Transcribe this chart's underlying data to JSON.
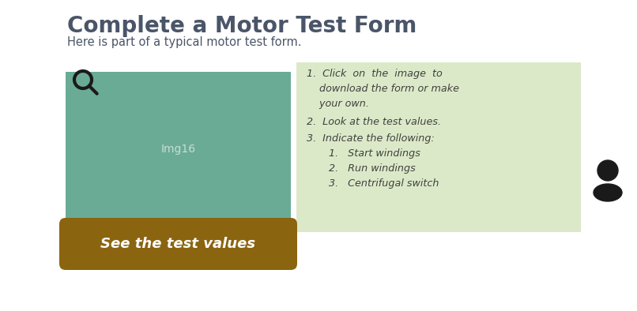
{
  "title": "Complete a Motor Test Form",
  "subtitle": "Here is part of a typical motor test form.",
  "bg_color": "#ffffff",
  "title_color": "#4a5568",
  "subtitle_color": "#4a5568",
  "left_box_color": "#6aab96",
  "left_box_label": "Img16",
  "left_box_label_color": "#c8ddd6",
  "button_color": "#8B6410",
  "button_text": "See the test values",
  "button_text_color": "#ffffff",
  "right_box_color": "#dce9c8",
  "right_box_text_color": "#404040",
  "person_color": "#1a1a1a",
  "search_color": "#1a1a1a"
}
